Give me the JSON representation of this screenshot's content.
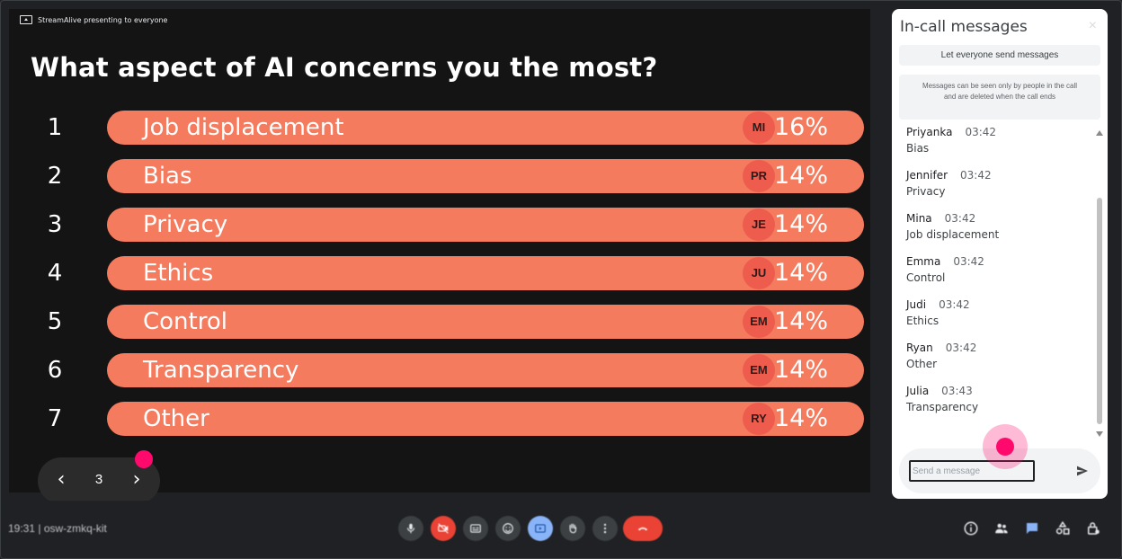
{
  "presentation": {
    "banner": "StreamAlive presenting to everyone",
    "question": "What aspect of AI concerns you the most?",
    "options": [
      {
        "rank": "1",
        "label": "Job displacement",
        "avatar": "MI",
        "percent": "16%"
      },
      {
        "rank": "2",
        "label": "Bias",
        "avatar": "PR",
        "percent": "14%"
      },
      {
        "rank": "3",
        "label": "Privacy",
        "avatar": "JE",
        "percent": "14%"
      },
      {
        "rank": "4",
        "label": "Ethics",
        "avatar": "JU",
        "percent": "14%"
      },
      {
        "rank": "5",
        "label": "Control",
        "avatar": "EM",
        "percent": "14%"
      },
      {
        "rank": "6",
        "label": "Transparency",
        "avatar": "EM",
        "percent": "14%"
      },
      {
        "rank": "7",
        "label": "Other",
        "avatar": "RY",
        "percent": "14%"
      }
    ],
    "pager": {
      "prev": "‹",
      "page": "3",
      "next": "›"
    },
    "colors": {
      "bar": "#f47b5e",
      "avatar": "#ee5c4e",
      "background": "#141414"
    }
  },
  "chat": {
    "title": "In-call messages",
    "close": "×",
    "toggle_label": "Let everyone send messages",
    "info": "Messages can be seen only by people in the call and are deleted when the call ends",
    "messages": [
      {
        "name": "Priyanka",
        "time": "03:42",
        "text": "Bias"
      },
      {
        "name": "Jennifer",
        "time": "03:42",
        "text": "Privacy"
      },
      {
        "name": "Mina",
        "time": "03:42",
        "text": "Job displacement"
      },
      {
        "name": "Emma",
        "time": "03:42",
        "text": "Control"
      },
      {
        "name": "Judi",
        "time": "03:42",
        "text": "Ethics"
      },
      {
        "name": "Ryan",
        "time": "03:42",
        "text": "Other"
      },
      {
        "name": "Julia",
        "time": "03:43",
        "text": "Transparency"
      }
    ],
    "compose_placeholder": "Send a message",
    "send_icon": "send-icon"
  },
  "bottom_bar": {
    "meeting_info": "19:31 | osw-zmkq-kit",
    "controls": [
      "mic-icon",
      "camera-off-icon",
      "captions-icon",
      "emoji-icon",
      "present-icon",
      "raise-hand-icon",
      "more-icon",
      "end-call-icon"
    ],
    "right_icons": [
      "info-icon",
      "people-icon",
      "chat-icon",
      "activities-icon",
      "lock-icon"
    ]
  }
}
